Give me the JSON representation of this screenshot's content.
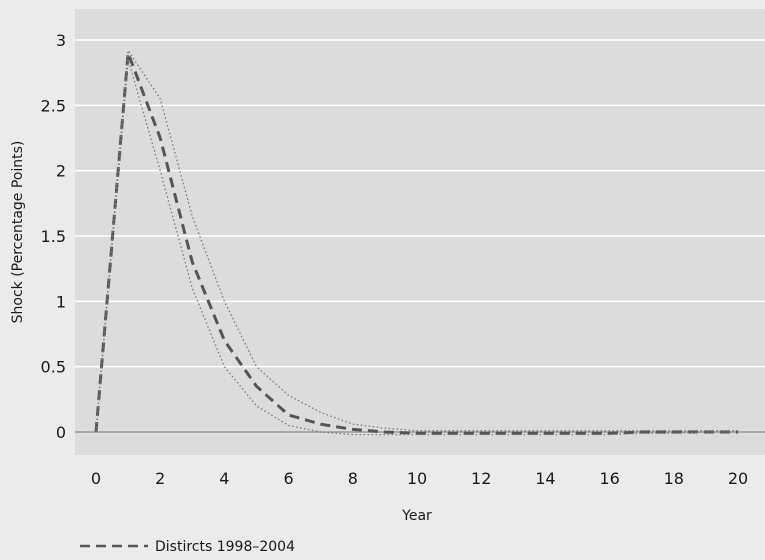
{
  "chart_data": {
    "type": "line",
    "xlabel": "Year",
    "ylabel": "Shock (Percentage Points)",
    "xlim": [
      0,
      20
    ],
    "ylim": [
      0,
      3
    ],
    "x_ticks": [
      0,
      2,
      4,
      6,
      8,
      10,
      12,
      14,
      16,
      18,
      20
    ],
    "y_ticks": [
      0,
      0.5,
      1,
      1.5,
      2,
      2.5,
      3
    ],
    "y_tick_labels": [
      "0",
      "0.5",
      "1",
      "1.5",
      "2",
      "2.5",
      "3"
    ],
    "grid": "horizontal",
    "legend_position": "bottom-left",
    "colors": {
      "plot_background": "#dcdcdc",
      "page_background": "#ebebeb",
      "gridline": "#ffffff",
      "series": "#555555",
      "band": "#7a7a7a"
    },
    "series": [
      {
        "name": "Distircts 1998–2004",
        "style": "dashed",
        "x": [
          0,
          1,
          2,
          3,
          4,
          5,
          6,
          7,
          8,
          9,
          10,
          11,
          12,
          13,
          14,
          15,
          16,
          17,
          18,
          19,
          20
        ],
        "y": [
          0,
          2.9,
          2.25,
          1.3,
          0.7,
          0.35,
          0.13,
          0.06,
          0.02,
          0,
          -0.01,
          -0.01,
          -0.01,
          -0.01,
          -0.01,
          -0.01,
          -0.01,
          0,
          0,
          0,
          0
        ]
      },
      {
        "style": "dotted",
        "x": [
          0,
          1,
          2,
          3,
          4,
          5,
          6,
          7,
          8,
          9,
          10,
          11,
          12,
          13,
          14,
          15,
          16,
          17,
          18,
          19,
          20
        ],
        "y": [
          0,
          2.92,
          2.55,
          1.65,
          1.0,
          0.5,
          0.28,
          0.15,
          0.06,
          0.03,
          0.01,
          0.01,
          0.01,
          0.01,
          0.01,
          0.01,
          0.01,
          0.01,
          0.01,
          0.01,
          0.01
        ]
      },
      {
        "style": "dotted",
        "x": [
          0,
          1,
          2,
          3,
          4,
          5,
          6,
          7,
          8,
          9,
          10,
          11,
          12,
          13,
          14,
          15,
          16,
          17,
          18,
          19,
          20
        ],
        "y": [
          0,
          2.85,
          2.0,
          1.1,
          0.5,
          0.2,
          0.05,
          0,
          -0.02,
          -0.02,
          -0.02,
          -0.02,
          -0.02,
          -0.02,
          -0.02,
          -0.02,
          -0.02,
          -0.01,
          -0.01,
          0,
          0
        ]
      }
    ]
  }
}
